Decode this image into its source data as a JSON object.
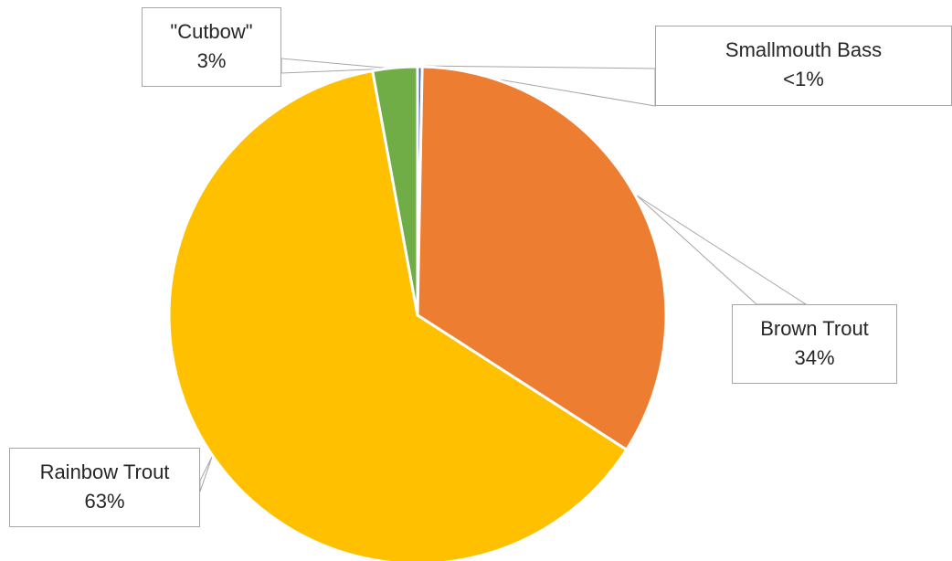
{
  "chart_data": {
    "type": "pie",
    "title": "",
    "slices": [
      {
        "label": "Smallmouth Bass",
        "value_text": "<1%",
        "value": 0.3,
        "color": "#4472c4"
      },
      {
        "label": "Brown Trout",
        "value_text": "34%",
        "value": 33.8,
        "color": "#ed7d31"
      },
      {
        "label": "Rainbow Trout",
        "value_text": "63%",
        "value": 63.0,
        "color": "#ffc000"
      },
      {
        "label": "\"Cutbow\"",
        "value_text": "3%",
        "value": 2.9,
        "color": "#70ad47"
      }
    ],
    "start_angle": "12 o'clock, clockwise",
    "legend": "none",
    "data_labels": "callouts with category name and percentage"
  }
}
